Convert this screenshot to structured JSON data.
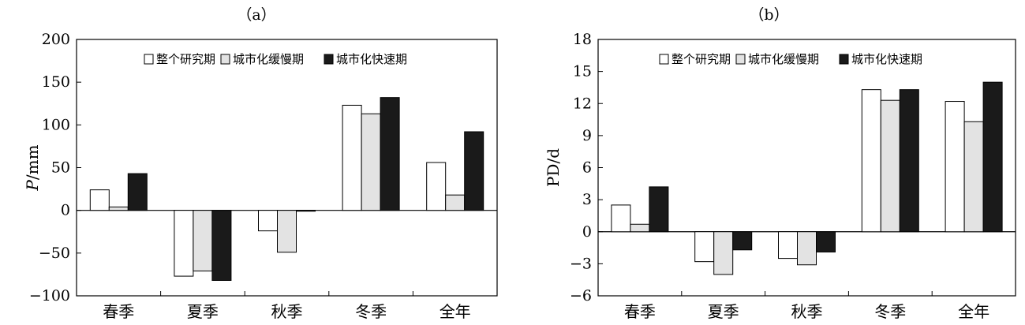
{
  "chart_data": [
    {
      "type": "bar",
      "panel_label": "（a）",
      "ylabel": "P/mm",
      "ylabel_italic_part": "P",
      "ylabel_rest": "/mm",
      "categories": [
        "春季",
        "夏季",
        "秋季",
        "冬季",
        "全年"
      ],
      "series": [
        {
          "name": "整个研究期",
          "values": [
            24,
            -77,
            -24,
            123,
            56
          ],
          "color": "#ffffff"
        },
        {
          "name": "城市化缓慢期",
          "values": [
            4,
            -71,
            -49,
            113,
            18
          ],
          "color": "#e3e3e3"
        },
        {
          "name": "城市化快速期",
          "values": [
            43,
            -82,
            -1,
            132,
            92
          ],
          "color": "#1a1a1a"
        }
      ],
      "ylim": [
        -100,
        200
      ],
      "yticks": [
        -100,
        -50,
        0,
        50,
        100,
        150,
        200
      ],
      "ytick_labels": [
        "−100",
        "−50",
        "0",
        "50",
        "100",
        "150",
        "200"
      ],
      "legend_position": "top-right",
      "grid": false
    },
    {
      "type": "bar",
      "panel_label": "（b）",
      "ylabel": "PD/d",
      "categories": [
        "春季",
        "夏季",
        "秋季",
        "冬季",
        "全年"
      ],
      "series": [
        {
          "name": "整个研究期",
          "values": [
            2.5,
            -2.8,
            -2.5,
            13.3,
            12.2
          ],
          "color": "#ffffff"
        },
        {
          "name": "城市化缓慢期",
          "values": [
            0.7,
            -4.0,
            -3.1,
            12.3,
            10.3
          ],
          "color": "#e3e3e3"
        },
        {
          "name": "城市化快速期",
          "values": [
            4.2,
            -1.7,
            -1.9,
            13.3,
            14.0
          ],
          "color": "#1a1a1a"
        }
      ],
      "ylim": [
        -6,
        18
      ],
      "yticks": [
        -6,
        -3,
        0,
        3,
        6,
        9,
        12,
        15,
        18
      ],
      "ytick_labels": [
        "−6",
        "−3",
        "0",
        "3",
        "6",
        "9",
        "12",
        "15",
        "18"
      ],
      "legend_position": "top-right",
      "grid": false
    }
  ]
}
